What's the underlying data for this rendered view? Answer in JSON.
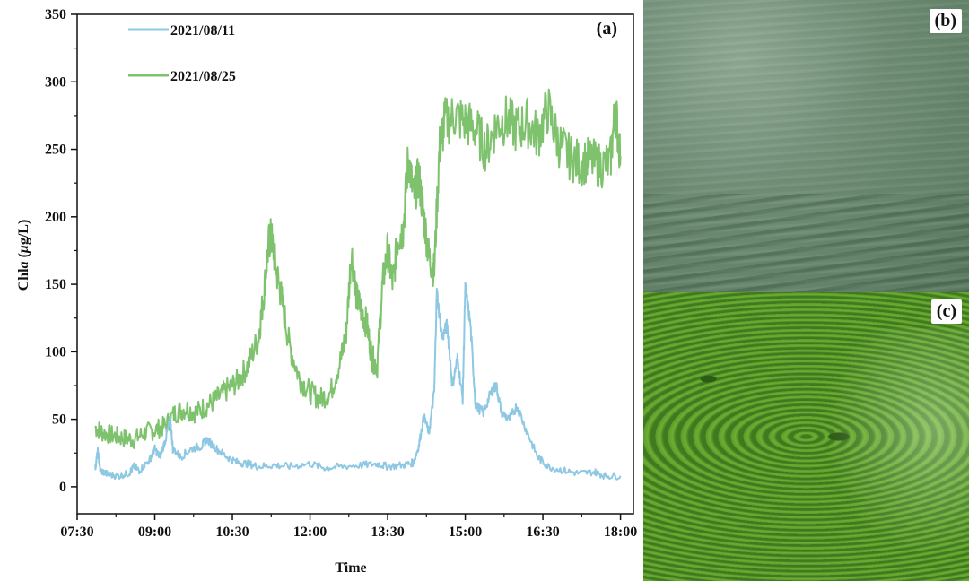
{
  "chart_data": {
    "type": "line",
    "panel_label": "(a)",
    "xlabel": "Time",
    "ylabel": "Chla (μg/L)",
    "ylabel_parts": {
      "main": "Chl",
      "italic": "a",
      "open": " (",
      "unit_italic": "μ",
      "unit_rest": "g/L)"
    },
    "x_ticks": [
      "07:30",
      "09:00",
      "10:30",
      "12:00",
      "13:30",
      "15:00",
      "16:30",
      "18:00"
    ],
    "x_tick_hours": [
      7.5,
      9.0,
      10.5,
      12.0,
      13.5,
      15.0,
      16.5,
      18.0
    ],
    "xlim_hours": [
      7.5,
      18.25
    ],
    "y_ticks": [
      0,
      50,
      100,
      150,
      200,
      250,
      300,
      350
    ],
    "ylim": [
      -20,
      350
    ],
    "legend_position": "top-left",
    "series": [
      {
        "name": "2021/08/11",
        "color": "#8ec8e3",
        "points": [
          [
            7.85,
            14
          ],
          [
            7.9,
            26
          ],
          [
            7.95,
            12
          ],
          [
            8.1,
            9
          ],
          [
            8.3,
            8
          ],
          [
            8.5,
            10
          ],
          [
            8.6,
            15
          ],
          [
            8.7,
            12
          ],
          [
            8.9,
            20
          ],
          [
            9.0,
            28
          ],
          [
            9.1,
            22
          ],
          [
            9.2,
            34
          ],
          [
            9.3,
            50
          ],
          [
            9.35,
            28
          ],
          [
            9.5,
            22
          ],
          [
            9.7,
            28
          ],
          [
            9.9,
            30
          ],
          [
            10.0,
            35
          ],
          [
            10.2,
            28
          ],
          [
            10.4,
            22
          ],
          [
            10.6,
            18
          ],
          [
            10.8,
            17
          ],
          [
            11.0,
            15
          ],
          [
            11.3,
            16
          ],
          [
            11.6,
            15
          ],
          [
            12.0,
            17
          ],
          [
            12.3,
            14
          ],
          [
            12.6,
            15
          ],
          [
            13.0,
            16
          ],
          [
            13.3,
            17
          ],
          [
            13.5,
            15
          ],
          [
            13.8,
            16
          ],
          [
            14.0,
            18
          ],
          [
            14.1,
            30
          ],
          [
            14.2,
            52
          ],
          [
            14.3,
            40
          ],
          [
            14.4,
            70
          ],
          [
            14.45,
            145
          ],
          [
            14.55,
            110
          ],
          [
            14.65,
            120
          ],
          [
            14.75,
            75
          ],
          [
            14.85,
            95
          ],
          [
            14.95,
            65
          ],
          [
            15.0,
            147
          ],
          [
            15.1,
            120
          ],
          [
            15.2,
            60
          ],
          [
            15.35,
            55
          ],
          [
            15.5,
            70
          ],
          [
            15.6,
            75
          ],
          [
            15.7,
            55
          ],
          [
            15.85,
            50
          ],
          [
            16.0,
            60
          ],
          [
            16.2,
            40
          ],
          [
            16.4,
            22
          ],
          [
            16.6,
            15
          ],
          [
            16.9,
            12
          ],
          [
            17.2,
            10
          ],
          [
            17.5,
            11
          ],
          [
            17.7,
            8
          ],
          [
            18.0,
            8
          ]
        ]
      },
      {
        "name": "2021/08/25",
        "color": "#7ec26e",
        "points": [
          [
            7.85,
            44
          ],
          [
            8.0,
            40
          ],
          [
            8.2,
            38
          ],
          [
            8.4,
            36
          ],
          [
            8.6,
            35
          ],
          [
            8.8,
            40
          ],
          [
            9.0,
            42
          ],
          [
            9.2,
            45
          ],
          [
            9.4,
            55
          ],
          [
            9.6,
            58
          ],
          [
            9.8,
            55
          ],
          [
            10.0,
            60
          ],
          [
            10.2,
            65
          ],
          [
            10.4,
            72
          ],
          [
            10.6,
            78
          ],
          [
            10.8,
            90
          ],
          [
            11.0,
            110
          ],
          [
            11.1,
            140
          ],
          [
            11.2,
            180
          ],
          [
            11.25,
            186
          ],
          [
            11.35,
            160
          ],
          [
            11.45,
            140
          ],
          [
            11.6,
            105
          ],
          [
            11.8,
            80
          ],
          [
            12.0,
            70
          ],
          [
            12.2,
            65
          ],
          [
            12.4,
            70
          ],
          [
            12.6,
            95
          ],
          [
            12.7,
            115
          ],
          [
            12.8,
            175
          ],
          [
            12.9,
            140
          ],
          [
            13.0,
            130
          ],
          [
            13.1,
            120
          ],
          [
            13.2,
            95
          ],
          [
            13.3,
            90
          ],
          [
            13.4,
            150
          ],
          [
            13.5,
            175
          ],
          [
            13.6,
            150
          ],
          [
            13.7,
            185
          ],
          [
            13.8,
            190
          ],
          [
            13.9,
            245
          ],
          [
            14.0,
            215
          ],
          [
            14.1,
            230
          ],
          [
            14.2,
            200
          ],
          [
            14.3,
            170
          ],
          [
            14.4,
            160
          ],
          [
            14.5,
            250
          ],
          [
            14.6,
            270
          ],
          [
            14.8,
            275
          ],
          [
            15.0,
            270
          ],
          [
            15.2,
            265
          ],
          [
            15.4,
            250
          ],
          [
            15.6,
            268
          ],
          [
            15.8,
            272
          ],
          [
            16.0,
            265
          ],
          [
            16.2,
            270
          ],
          [
            16.4,
            260
          ],
          [
            16.6,
            280
          ],
          [
            16.8,
            255
          ],
          [
            17.0,
            245
          ],
          [
            17.2,
            240
          ],
          [
            17.4,
            242
          ],
          [
            17.6,
            238
          ],
          [
            17.8,
            240
          ],
          [
            17.9,
            280
          ],
          [
            18.0,
            245
          ]
        ]
      }
    ]
  },
  "photos": [
    {
      "label": "(b)"
    },
    {
      "label": "(c)"
    }
  ]
}
